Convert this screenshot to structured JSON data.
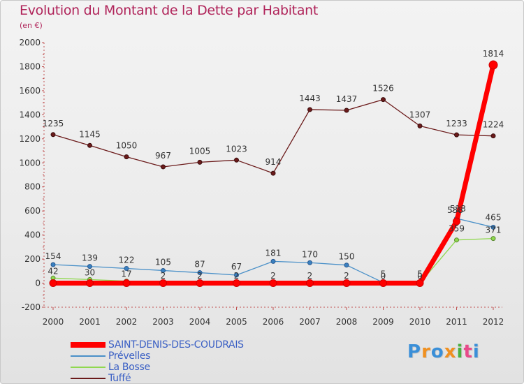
{
  "chart_data": {
    "type": "line",
    "title": "Evolution du Montant de la Dette par Habitant",
    "subtitle": "(en €)",
    "categories": [
      "2000",
      "2001",
      "2002",
      "2003",
      "2004",
      "2005",
      "2006",
      "2007",
      "2008",
      "2009",
      "2010",
      "2011",
      "2012"
    ],
    "ylim": [
      -200,
      2000
    ],
    "yticks": [
      -200,
      0,
      200,
      400,
      600,
      800,
      1000,
      1200,
      1400,
      1600,
      1800,
      2000
    ],
    "grid": false,
    "legend_position": "bottom-left",
    "series": [
      {
        "name": "Tuffé",
        "color": "#6b1a1a",
        "values": [
          1235,
          1145,
          1050,
          967,
          1005,
          1023,
          914,
          1443,
          1437,
          1526,
          1307,
          1233,
          1224
        ],
        "labels": [
          "1235",
          "1145",
          "1050",
          "967",
          "1005",
          "1023",
          "914",
          "1443",
          "1437",
          "1526",
          "1307",
          "1233",
          "1224"
        ]
      },
      {
        "name": "Prévelles",
        "color": "#4a90c8",
        "values": [
          154,
          139,
          122,
          105,
          87,
          67,
          181,
          170,
          150,
          5,
          5,
          538,
          465
        ],
        "labels": [
          "154",
          "139",
          "122",
          "105",
          "87",
          "67",
          "181",
          "170",
          "150",
          "5",
          "5",
          "538",
          "465"
        ]
      },
      {
        "name": "La Bosse",
        "color": "#90d850",
        "values": [
          42,
          30,
          17,
          2,
          2,
          2,
          2,
          2,
          2,
          0,
          0,
          359,
          371
        ],
        "labels": [
          "42",
          "30",
          "17",
          "2",
          "2",
          "2",
          "2",
          "2",
          "2",
          "0",
          "0",
          "359",
          "371"
        ]
      },
      {
        "name": "SAINT-DENIS-DES-COUDRAIS",
        "color": "#ff0000",
        "values": [
          0,
          0,
          0,
          0,
          0,
          0,
          0,
          0,
          0,
          0,
          0,
          513,
          1814
        ],
        "labels": [
          "",
          "",
          "",
          "",
          "",
          "",
          "",
          "",
          "",
          "",
          "",
          "513",
          "1814"
        ]
      }
    ]
  },
  "legend": [
    {
      "label": "SAINT-DENIS-DES-COUDRAIS",
      "color": "#ff0000"
    },
    {
      "label": "Prévelles",
      "color": "#4a90c8"
    },
    {
      "label": "La Bosse",
      "color": "#90d850"
    },
    {
      "label": "Tuffé",
      "color": "#6b1a1a"
    }
  ],
  "logo": {
    "chars": [
      "P",
      "r",
      "o",
      "x",
      "i",
      "t",
      "i"
    ]
  }
}
